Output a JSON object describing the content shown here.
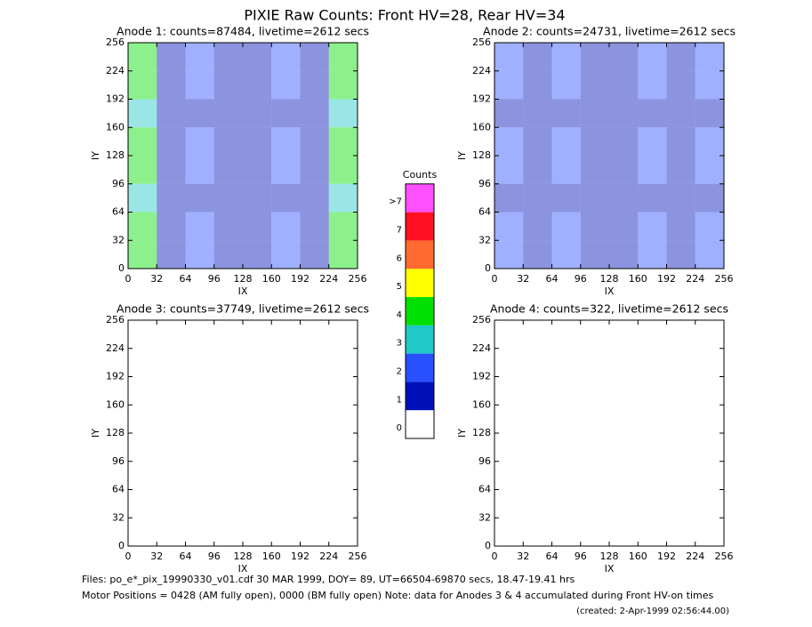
{
  "title": "PIXIE Raw Counts:  Front HV=28, Rear HV=34",
  "chart_data": [
    {
      "type": "heatmap",
      "title": "Anode 1: counts=87484, livetime=2612 secs",
      "xlabel": "IX",
      "ylabel": "IY",
      "xlim": [
        0,
        256
      ],
      "ylim": [
        0,
        256
      ],
      "xticks": [
        0,
        32,
        64,
        96,
        128,
        160,
        192,
        224,
        256
      ],
      "yticks": [
        0,
        32,
        64,
        96,
        128,
        160,
        192,
        224,
        256
      ],
      "z": [
        [
          4,
          1,
          2,
          1,
          1,
          2,
          1,
          4
        ],
        [
          4,
          1,
          2,
          1,
          1,
          2,
          1,
          4
        ],
        [
          3,
          1,
          1,
          1,
          1,
          1,
          1,
          3
        ],
        [
          4,
          1,
          2,
          1,
          1,
          2,
          1,
          4
        ],
        [
          4,
          1,
          2,
          1,
          1,
          2,
          1,
          4
        ],
        [
          3,
          1,
          1,
          1,
          1,
          1,
          1,
          3
        ],
        [
          4,
          1,
          2,
          1,
          1,
          2,
          1,
          4
        ],
        [
          4,
          1,
          2,
          1,
          1,
          2,
          1,
          4
        ]
      ]
    },
    {
      "type": "heatmap",
      "title": "Anode 2: counts=24731, livetime=2612 secs",
      "xlabel": "IX",
      "ylabel": "IY",
      "xlim": [
        0,
        256
      ],
      "ylim": [
        0,
        256
      ],
      "xticks": [
        0,
        32,
        64,
        96,
        128,
        160,
        192,
        224,
        256
      ],
      "yticks": [
        0,
        32,
        64,
        96,
        128,
        160,
        192,
        224,
        256
      ],
      "z": [
        [
          2,
          1,
          2,
          1,
          1,
          2,
          1,
          2
        ],
        [
          2,
          1,
          2,
          1,
          1,
          2,
          1,
          2
        ],
        [
          1,
          1,
          1,
          1,
          1,
          1,
          1,
          1
        ],
        [
          2,
          1,
          2,
          1,
          1,
          2,
          1,
          2
        ],
        [
          2,
          1,
          2,
          1,
          1,
          2,
          1,
          2
        ],
        [
          1,
          1,
          1,
          1,
          1,
          1,
          1,
          1
        ],
        [
          2,
          1,
          2,
          1,
          1,
          2,
          1,
          2
        ],
        [
          2,
          1,
          2,
          1,
          1,
          2,
          1,
          2
        ]
      ]
    },
    {
      "type": "heatmap",
      "title": "Anode 3: counts=37749, livetime=2612 secs",
      "xlabel": "IX",
      "ylabel": "IY",
      "xlim": [
        0,
        256
      ],
      "ylim": [
        0,
        256
      ],
      "xticks": [
        0,
        32,
        64,
        96,
        128,
        160,
        192,
        224,
        256
      ],
      "yticks": [
        0,
        32,
        64,
        96,
        128,
        160,
        192,
        224,
        256
      ]
    },
    {
      "type": "heatmap",
      "title": "Anode 4: counts=322, livetime=2612 secs",
      "xlabel": "IX",
      "ylabel": "IY",
      "xlim": [
        0,
        256
      ],
      "ylim": [
        0,
        256
      ],
      "xticks": [
        0,
        32,
        64,
        96,
        128,
        160,
        192,
        224,
        256
      ],
      "yticks": [
        0,
        32,
        64,
        96,
        128,
        160,
        192,
        224,
        256
      ]
    }
  ],
  "colorbar": {
    "title": "Counts",
    "labels": [
      "0",
      "1",
      "2",
      "3",
      "4",
      "5",
      "6",
      "7",
      ">7"
    ],
    "colors": [
      "#ffffff",
      "#0010b8",
      "#2850ff",
      "#20c8c8",
      "#00e000",
      "#ffff00",
      "#ff6a30",
      "#ff1020",
      "#ff50ff"
    ]
  },
  "footer": [
    "Files: po_e*_pix_19990330_v01.cdf    30 MAR 1999, DOY= 89, UT=66504-69870 secs, 18.47-19.41 hrs",
    "Motor Positions = 0428 (AM fully open), 0000 (BM fully open)    Note: data for Anodes 3 & 4 accumulated during Front HV-on times",
    "(created:  2-Apr-1999 02:56:44.00)"
  ]
}
